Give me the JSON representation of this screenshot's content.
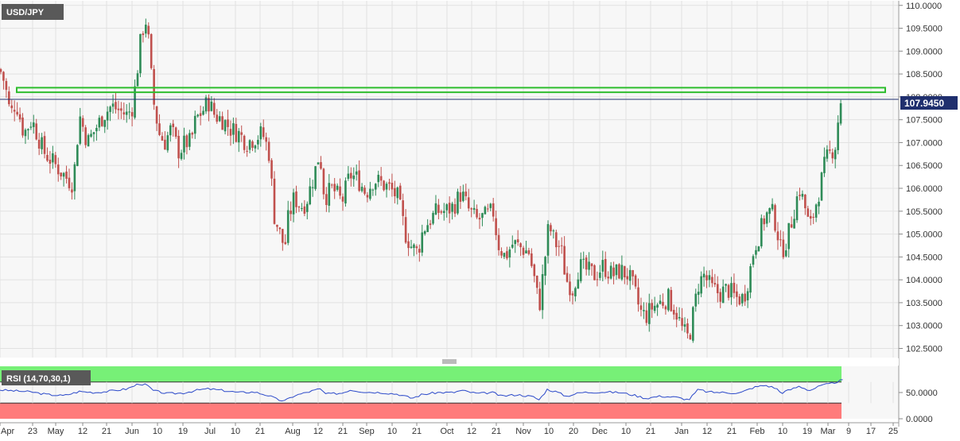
{
  "symbol": "USD/JPY",
  "last_price_label": "107.9450",
  "rsi_label": "RSI (14,70,30,1)",
  "colors": {
    "background": "#f7f7f7",
    "grid": "#e2e2e2",
    "up": "#2e8b57",
    "down": "#c0504d",
    "resistance_zone": "#2ebd2e",
    "last_price_line": "#1f2f6e",
    "label_bg": "#595959",
    "rsi_line": "#2a48c9",
    "rsi_overbought": "#77f077",
    "rsi_oversold": "#ff7b7b"
  },
  "chart_data": [
    {
      "type": "candlestick",
      "title": "USD/JPY",
      "x_tick_labels": [
        "Apr",
        "23",
        "May",
        "12",
        "21",
        "Jun",
        "10",
        "19",
        "Jul",
        "10",
        "21",
        "Aug",
        "12",
        "21",
        "Sep",
        "10",
        "21",
        "Oct",
        "12",
        "21",
        "Nov",
        "10",
        "20",
        "Dec",
        "10",
        "21",
        "Jan",
        "12",
        "21",
        "Feb",
        "10",
        "19",
        "Mar",
        "9",
        "17",
        "25"
      ],
      "y_tick_labels": [
        "102.5000",
        "103.0000",
        "103.5000",
        "104.0000",
        "104.5000",
        "105.0000",
        "105.5000",
        "106.0000",
        "106.5000",
        "107.0000",
        "107.5000",
        "108.0000",
        "108.5000",
        "109.0000",
        "109.5000",
        "110.0000"
      ],
      "ylim": [
        102.3,
        110.1
      ],
      "grid": true,
      "resistance_zone": [
        108.1,
        108.2
      ],
      "last_price": 107.945,
      "close_path": [
        [
          0,
          108.6
        ],
        [
          6,
          108.3
        ],
        [
          13,
          107.6
        ],
        [
          20,
          107.9
        ],
        [
          30,
          107.2
        ],
        [
          40,
          107.5
        ],
        [
          55,
          106.8
        ],
        [
          65,
          106.6
        ],
        [
          75,
          106.4
        ],
        [
          85,
          106.2
        ],
        [
          92,
          106.1
        ],
        [
          100,
          107.6
        ],
        [
          110,
          107.0
        ],
        [
          120,
          107.3
        ],
        [
          130,
          107.6
        ],
        [
          140,
          107.8
        ],
        [
          150,
          107.7
        ],
        [
          160,
          107.6
        ],
        [
          167,
          107.8
        ],
        [
          172,
          108.5
        ],
        [
          178,
          109.4
        ],
        [
          184,
          109.7
        ],
        [
          188,
          109.0
        ],
        [
          192,
          108.0
        ],
        [
          200,
          107.2
        ],
        [
          207,
          107.0
        ],
        [
          215,
          107.3
        ],
        [
          225,
          106.8
        ],
        [
          233,
          107.0
        ],
        [
          240,
          107.0
        ],
        [
          246,
          107.5
        ],
        [
          255,
          107.7
        ],
        [
          262,
          107.9
        ],
        [
          270,
          107.6
        ],
        [
          280,
          107.5
        ],
        [
          290,
          107.3
        ],
        [
          300,
          107.2
        ],
        [
          310,
          107.0
        ],
        [
          320,
          107.1
        ],
        [
          330,
          107.2
        ],
        [
          338,
          106.8
        ],
        [
          345,
          105.4
        ],
        [
          352,
          105.0
        ],
        [
          358,
          104.7
        ],
        [
          362,
          105.3
        ],
        [
          370,
          105.8
        ],
        [
          378,
          105.6
        ],
        [
          385,
          105.7
        ],
        [
          395,
          106.3
        ],
        [
          402,
          106.8
        ],
        [
          408,
          105.8
        ],
        [
          418,
          106.0
        ],
        [
          430,
          105.7
        ],
        [
          440,
          106.3
        ],
        [
          450,
          106.2
        ],
        [
          460,
          105.9
        ],
        [
          470,
          106.2
        ],
        [
          480,
          106.1
        ],
        [
          490,
          106.0
        ],
        [
          500,
          105.8
        ],
        [
          510,
          105.0
        ],
        [
          518,
          104.7
        ],
        [
          525,
          104.6
        ],
        [
          532,
          105.1
        ],
        [
          540,
          105.3
        ],
        [
          550,
          105.5
        ],
        [
          560,
          105.5
        ],
        [
          570,
          105.6
        ],
        [
          580,
          105.9
        ],
        [
          590,
          105.5
        ],
        [
          600,
          105.3
        ],
        [
          612,
          105.4
        ],
        [
          620,
          105.5
        ],
        [
          626,
          104.8
        ],
        [
          635,
          104.5
        ],
        [
          645,
          104.8
        ],
        [
          655,
          104.7
        ],
        [
          665,
          104.6
        ],
        [
          672,
          104.0
        ],
        [
          678,
          103.4
        ],
        [
          684,
          104.3
        ],
        [
          690,
          105.2
        ],
        [
          698,
          104.8
        ],
        [
          705,
          104.7
        ],
        [
          712,
          104.0
        ],
        [
          720,
          103.8
        ],
        [
          728,
          104.3
        ],
        [
          738,
          104.2
        ],
        [
          748,
          104.1
        ],
        [
          758,
          104.3
        ],
        [
          770,
          104.1
        ],
        [
          780,
          104.2
        ],
        [
          790,
          104.1
        ],
        [
          797,
          103.8
        ],
        [
          805,
          103.3
        ],
        [
          812,
          103.2
        ],
        [
          820,
          103.4
        ],
        [
          830,
          103.5
        ],
        [
          840,
          103.6
        ],
        [
          850,
          103.3
        ],
        [
          858,
          102.9
        ],
        [
          866,
          102.7
        ],
        [
          872,
          103.3
        ],
        [
          878,
          103.9
        ],
        [
          885,
          104.1
        ],
        [
          895,
          103.8
        ],
        [
          905,
          103.7
        ],
        [
          915,
          103.8
        ],
        [
          925,
          103.6
        ],
        [
          935,
          103.6
        ],
        [
          942,
          104.1
        ],
        [
          948,
          104.7
        ],
        [
          955,
          105.0
        ],
        [
          962,
          105.4
        ],
        [
          970,
          105.5
        ],
        [
          976,
          105.2
        ],
        [
          982,
          104.6
        ],
        [
          990,
          104.9
        ],
        [
          998,
          105.5
        ],
        [
          1005,
          106.0
        ],
        [
          1012,
          105.6
        ],
        [
          1018,
          105.1
        ],
        [
          1025,
          105.6
        ],
        [
          1032,
          106.1
        ],
        [
          1038,
          106.6
        ],
        [
          1045,
          106.8
        ],
        [
          1052,
          107.0
        ],
        [
          1055,
          107.8
        ],
        [
          1060,
          107.945
        ]
      ]
    },
    {
      "type": "line",
      "title": "RSI (14,70,30,1)",
      "y_tick_labels": [
        "0.0000",
        "50.0000"
      ],
      "ylim": [
        0,
        100
      ],
      "overbought": 70,
      "oversold": 30,
      "values_path": [
        [
          0,
          55
        ],
        [
          20,
          53
        ],
        [
          40,
          51
        ],
        [
          60,
          46
        ],
        [
          80,
          44
        ],
        [
          100,
          52
        ],
        [
          120,
          50
        ],
        [
          140,
          53
        ],
        [
          160,
          57
        ],
        [
          175,
          67
        ],
        [
          185,
          64
        ],
        [
          192,
          54
        ],
        [
          210,
          48
        ],
        [
          230,
          49
        ],
        [
          250,
          55
        ],
        [
          262,
          57
        ],
        [
          280,
          54
        ],
        [
          300,
          50
        ],
        [
          320,
          51
        ],
        [
          338,
          44
        ],
        [
          350,
          36
        ],
        [
          358,
          34
        ],
        [
          370,
          44
        ],
        [
          390,
          52
        ],
        [
          402,
          57
        ],
        [
          410,
          47
        ],
        [
          430,
          49
        ],
        [
          440,
          55
        ],
        [
          460,
          51
        ],
        [
          480,
          50
        ],
        [
          500,
          47
        ],
        [
          518,
          39
        ],
        [
          530,
          46
        ],
        [
          550,
          50
        ],
        [
          570,
          50
        ],
        [
          580,
          54
        ],
        [
          600,
          48
        ],
        [
          620,
          50
        ],
        [
          630,
          43
        ],
        [
          650,
          46
        ],
        [
          670,
          42
        ],
        [
          678,
          36
        ],
        [
          688,
          56
        ],
        [
          700,
          51
        ],
        [
          712,
          43
        ],
        [
          730,
          50
        ],
        [
          760,
          51
        ],
        [
          780,
          50
        ],
        [
          797,
          45
        ],
        [
          812,
          39
        ],
        [
          830,
          43
        ],
        [
          850,
          41
        ],
        [
          866,
          36
        ],
        [
          878,
          56
        ],
        [
          890,
          51
        ],
        [
          910,
          50
        ],
        [
          930,
          49
        ],
        [
          948,
          60
        ],
        [
          962,
          64
        ],
        [
          976,
          58
        ],
        [
          982,
          49
        ],
        [
          998,
          58
        ],
        [
          1005,
          62
        ],
        [
          1018,
          54
        ],
        [
          1032,
          63
        ],
        [
          1045,
          67
        ],
        [
          1060,
          74
        ]
      ]
    }
  ]
}
